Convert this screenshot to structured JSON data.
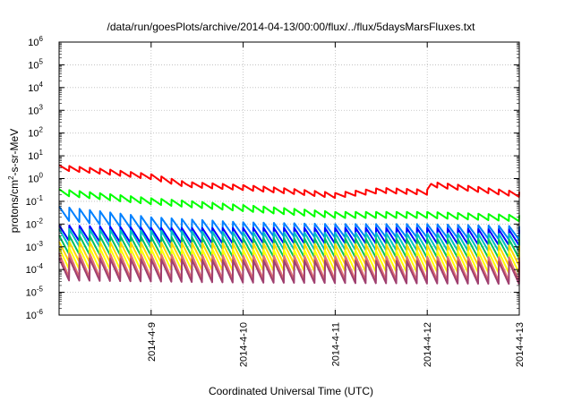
{
  "chart_data": {
    "type": "line",
    "title": "/data/run/goesPlots/archive/2014-04-13/00:00/flux/../flux/5daysMarsFluxes.txt",
    "xlabel": "Coordinated Universal Time (UTC)",
    "ylabel": {
      "base": "protons/cm",
      "sup": "2",
      "rest": "-s-sr-MeV"
    },
    "yscale": "log",
    "ylim": [
      1e-06,
      1000000.0
    ],
    "y_ticks": [
      {
        "exp": "-6"
      },
      {
        "exp": "-5"
      },
      {
        "exp": "-4"
      },
      {
        "exp": "-3"
      },
      {
        "exp": "-2"
      },
      {
        "exp": "-1"
      },
      {
        "exp": "0"
      },
      {
        "exp": "1"
      },
      {
        "exp": "2"
      },
      {
        "exp": "3"
      },
      {
        "exp": "4"
      },
      {
        "exp": "5"
      },
      {
        "exp": "6"
      }
    ],
    "tick_base": "10",
    "xlim": [
      "2014-04-08T00:00",
      "2014-04-13T00:00"
    ],
    "x_ticks": [
      "2014-4-9",
      "2014-4-10",
      "2014-4-11",
      "2014-4-12",
      "2014-4-13"
    ],
    "grid": true,
    "sawtooth_cycles_per_day": 9,
    "series": [
      {
        "color": "#ff0000",
        "points": [
          [
            "2014-04-08T00:00",
            3.0
          ],
          [
            "2014-04-08T12:00",
            2.0
          ],
          [
            "2014-04-09T00:00",
            1.2
          ],
          [
            "2014-04-09T09:00",
            0.55
          ],
          [
            "2014-04-10T00:00",
            0.4
          ],
          [
            "2014-04-10T12:00",
            0.28
          ],
          [
            "2014-04-11T00:00",
            0.18
          ],
          [
            "2014-04-11T12:00",
            0.3
          ],
          [
            "2014-04-12T00:00",
            0.25
          ],
          [
            "2014-04-12T01:00",
            0.55
          ],
          [
            "2014-04-12T12:00",
            0.35
          ],
          [
            "2014-04-13T00:00",
            0.2
          ]
        ],
        "amplitude": 1.7
      },
      {
        "color": "#00ff00",
        "points": [
          [
            "2014-04-08T00:00",
            0.25
          ],
          [
            "2014-04-09T00:00",
            0.1
          ],
          [
            "2014-04-10T00:00",
            0.05
          ],
          [
            "2014-04-11T00:00",
            0.025
          ],
          [
            "2014-04-12T00:00",
            0.025
          ],
          [
            "2014-04-13T00:00",
            0.018
          ]
        ],
        "amplitude": 1.9
      },
      {
        "color": "#0080ff",
        "points": [
          [
            "2014-04-08T00:00",
            0.03
          ],
          [
            "2014-04-09T00:00",
            0.01
          ],
          [
            "2014-04-10T00:00",
            0.006
          ],
          [
            "2014-04-11T00:00",
            0.005
          ],
          [
            "2014-04-12T00:00",
            0.005
          ],
          [
            "2014-04-13T00:00",
            0.004
          ]
        ],
        "amplitude": 4
      },
      {
        "color": "#0000ff",
        "points": [
          [
            "2014-04-08T00:00",
            0.004
          ],
          [
            "2014-04-09T00:00",
            0.003
          ],
          [
            "2014-04-10T00:00",
            0.003
          ],
          [
            "2014-04-11T00:00",
            0.003
          ],
          [
            "2014-04-12T00:00",
            0.003
          ],
          [
            "2014-04-13T00:00",
            0.0025
          ]
        ],
        "amplitude": 5
      },
      {
        "color": "#00c0c0",
        "points": [
          [
            "2014-04-08T00:00",
            0.0025
          ],
          [
            "2014-04-10T00:00",
            0.0018
          ],
          [
            "2014-04-13T00:00",
            0.0015
          ]
        ],
        "amplitude": 6
      },
      {
        "color": "#00c060",
        "points": [
          [
            "2014-04-08T00:00",
            0.0012
          ],
          [
            "2014-04-10T00:00",
            0.0009
          ],
          [
            "2014-04-13T00:00",
            0.0008
          ]
        ],
        "amplitude": 7
      },
      {
        "color": "#ffd700",
        "points": [
          [
            "2014-04-08T00:00",
            0.0006
          ],
          [
            "2014-04-10T00:00",
            0.0005
          ],
          [
            "2014-04-13T00:00",
            0.0004
          ]
        ],
        "amplitude": 8
      },
      {
        "color": "#ffff00",
        "points": [
          [
            "2014-04-08T00:00",
            0.0003
          ],
          [
            "2014-04-10T00:00",
            0.00025
          ],
          [
            "2014-04-13T00:00",
            0.0002
          ]
        ],
        "amplitude": 9
      },
      {
        "color": "#e07070",
        "points": [
          [
            "2014-04-08T00:00",
            0.00015
          ],
          [
            "2014-04-10T00:00",
            0.00012
          ],
          [
            "2014-04-13T00:00",
            0.0001
          ]
        ],
        "amplitude": 12
      },
      {
        "color": "#a04070",
        "points": [
          [
            "2014-04-08T00:00",
            0.0001
          ],
          [
            "2014-04-10T00:00",
            8e-05
          ],
          [
            "2014-04-13T00:00",
            7e-05
          ]
        ],
        "amplitude": 10
      }
    ]
  }
}
